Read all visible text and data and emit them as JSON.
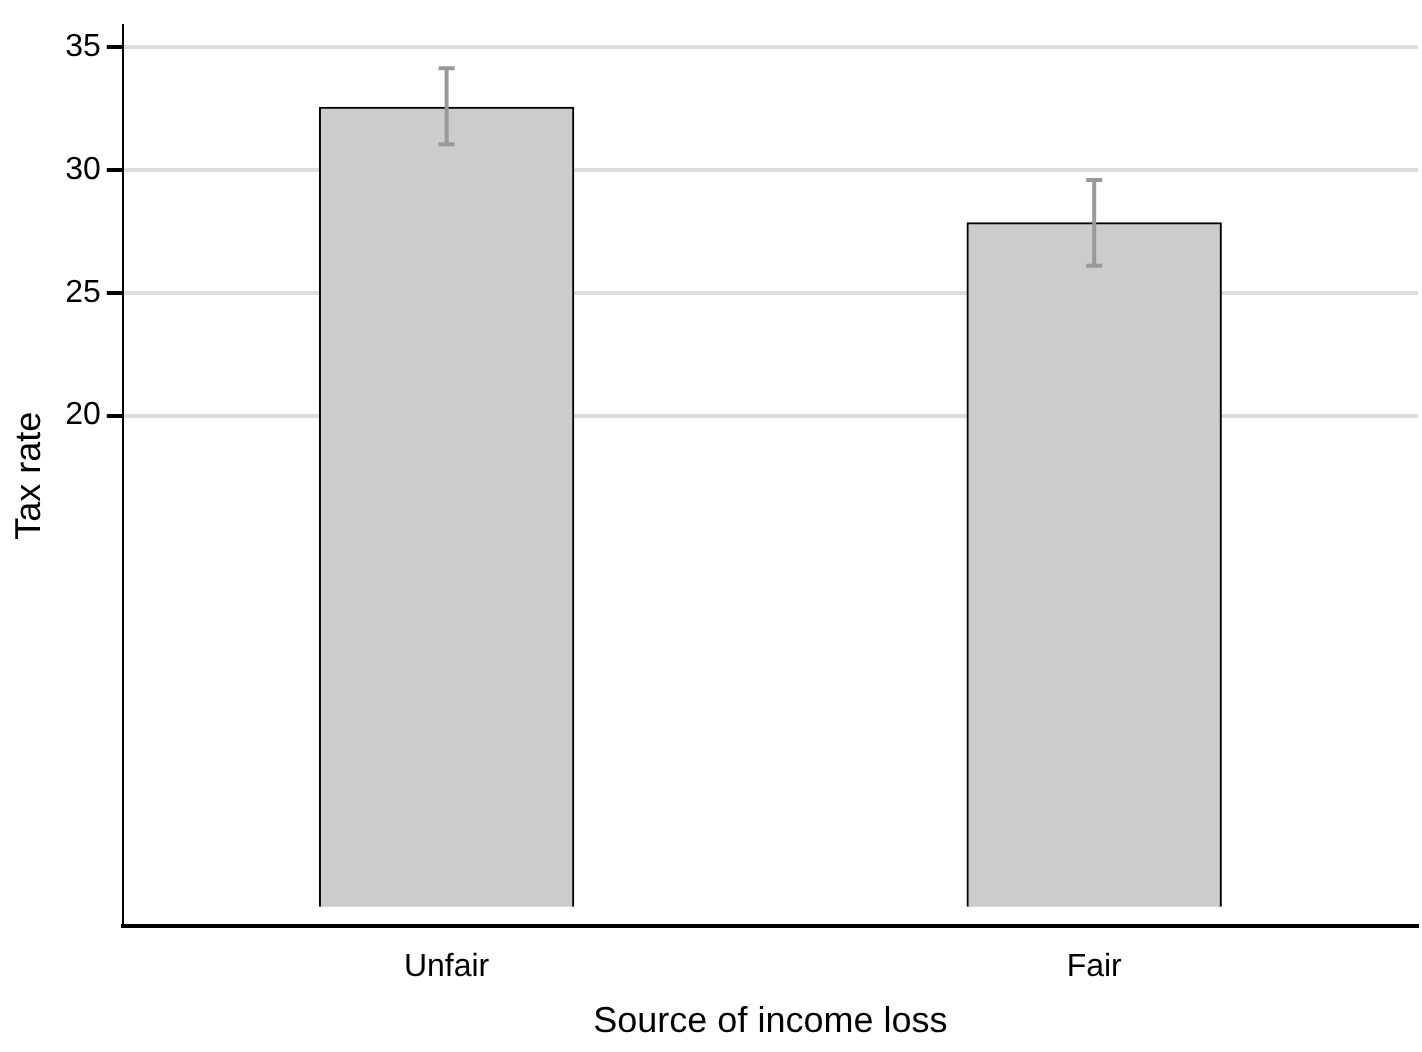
{
  "chart_data": {
    "type": "bar",
    "xlabel": "Source of income loss",
    "ylabel": "Tax rate",
    "categories": [
      "Unfair",
      "Fair"
    ],
    "values": [
      32.55,
      27.85
    ],
    "errors": [
      [
        31.05,
        34.15
      ],
      [
        26.1,
        29.6
      ]
    ],
    "color": "#cccccc",
    "ylim": [
      -0.8,
      35.9
    ],
    "yticks": [
      20,
      25,
      30,
      35
    ],
    "grid": "y",
    "legend": false
  }
}
